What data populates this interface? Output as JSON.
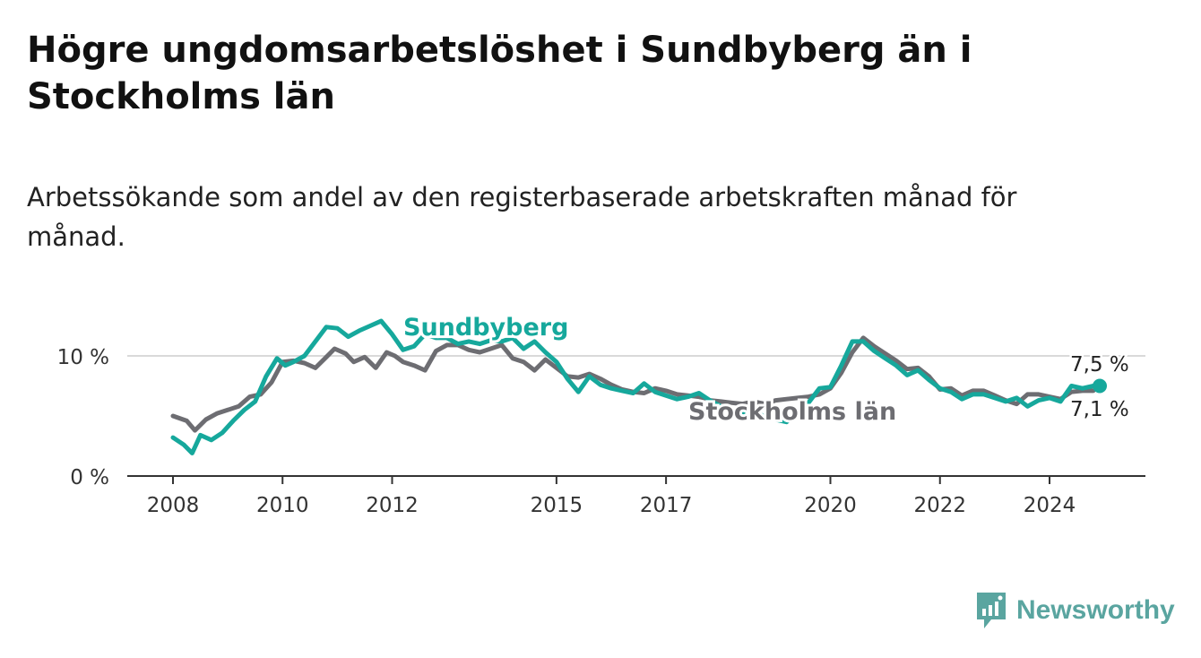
{
  "header": {
    "title": "Högre ungdomsarbetslöshet i Sundbyberg än i Stockholms län",
    "subtitle": "Arbetssökande som andel av den registerbaserade arbetskraften månad för månad."
  },
  "branding": {
    "name": "Newsworthy",
    "icon": "newsworthy-logo-icon"
  },
  "colors": {
    "sundbyberg": "#16a89c",
    "stockholm": "#6d6d72",
    "axis": "#333333",
    "grid": "#d9d9d9"
  },
  "chart_data": {
    "type": "line",
    "ylim": [
      0,
      14
    ],
    "y_ticks": [
      {
        "value": 0,
        "label": "0 %"
      },
      {
        "value": 10,
        "label": "10 %"
      }
    ],
    "x_ticks": [
      {
        "value": 2008,
        "label": "2008"
      },
      {
        "value": 2010,
        "label": "2010"
      },
      {
        "value": 2012,
        "label": "2012"
      },
      {
        "value": 2015,
        "label": "2015"
      },
      {
        "value": 2017,
        "label": "2017"
      },
      {
        "value": 2020,
        "label": "2020"
      },
      {
        "value": 2022,
        "label": "2022"
      },
      {
        "value": 2024,
        "label": "2024"
      }
    ],
    "grid": "horizontal",
    "series": [
      {
        "name": "Stockholms län",
        "key": "stockholm",
        "end_label": "7,1 %",
        "points": [
          [
            2008.0,
            5.0
          ],
          [
            2008.25,
            4.6
          ],
          [
            2008.4,
            3.8
          ],
          [
            2008.6,
            4.7
          ],
          [
            2008.8,
            5.2
          ],
          [
            2009.0,
            5.5
          ],
          [
            2009.2,
            5.8
          ],
          [
            2009.4,
            6.6
          ],
          [
            2009.6,
            6.8
          ],
          [
            2009.8,
            7.8
          ],
          [
            2010.0,
            9.5
          ],
          [
            2010.2,
            9.6
          ],
          [
            2010.4,
            9.4
          ],
          [
            2010.6,
            9.0
          ],
          [
            2010.8,
            9.9
          ],
          [
            2010.95,
            10.6
          ],
          [
            2011.15,
            10.2
          ],
          [
            2011.3,
            9.5
          ],
          [
            2011.5,
            9.9
          ],
          [
            2011.7,
            9.0
          ],
          [
            2011.9,
            10.3
          ],
          [
            2012.05,
            10.0
          ],
          [
            2012.2,
            9.5
          ],
          [
            2012.4,
            9.2
          ],
          [
            2012.6,
            8.8
          ],
          [
            2012.8,
            10.4
          ],
          [
            2013.0,
            10.9
          ],
          [
            2013.2,
            10.9
          ],
          [
            2013.4,
            10.5
          ],
          [
            2013.6,
            10.3
          ],
          [
            2013.8,
            10.6
          ],
          [
            2014.0,
            10.9
          ],
          [
            2014.2,
            9.8
          ],
          [
            2014.4,
            9.5
          ],
          [
            2014.6,
            8.8
          ],
          [
            2014.8,
            9.7
          ],
          [
            2015.0,
            9.0
          ],
          [
            2015.2,
            8.3
          ],
          [
            2015.4,
            8.2
          ],
          [
            2015.6,
            8.5
          ],
          [
            2015.8,
            8.1
          ],
          [
            2016.0,
            7.6
          ],
          [
            2016.2,
            7.2
          ],
          [
            2016.4,
            7.0
          ],
          [
            2016.6,
            6.9
          ],
          [
            2016.8,
            7.3
          ],
          [
            2017.0,
            7.1
          ],
          [
            2017.2,
            6.8
          ],
          [
            2017.4,
            6.7
          ],
          [
            2017.6,
            6.6
          ],
          [
            2017.8,
            6.3
          ],
          [
            2018.0,
            6.2
          ],
          [
            2018.2,
            6.1
          ],
          [
            2018.4,
            6.0
          ],
          [
            2018.6,
            6.2
          ],
          [
            2018.8,
            6.0
          ],
          [
            2019.0,
            6.3
          ],
          [
            2019.2,
            6.4
          ],
          [
            2019.4,
            6.5
          ],
          [
            2019.6,
            6.6
          ],
          [
            2019.8,
            6.8
          ],
          [
            2020.0,
            7.3
          ],
          [
            2020.2,
            8.6
          ],
          [
            2020.4,
            10.3
          ],
          [
            2020.6,
            11.5
          ],
          [
            2020.8,
            10.8
          ],
          [
            2021.0,
            10.2
          ],
          [
            2021.2,
            9.6
          ],
          [
            2021.4,
            8.9
          ],
          [
            2021.6,
            9.0
          ],
          [
            2021.8,
            8.3
          ],
          [
            2022.0,
            7.2
          ],
          [
            2022.2,
            7.3
          ],
          [
            2022.4,
            6.7
          ],
          [
            2022.6,
            7.1
          ],
          [
            2022.8,
            7.1
          ],
          [
            2023.0,
            6.7
          ],
          [
            2023.2,
            6.3
          ],
          [
            2023.4,
            6.0
          ],
          [
            2023.6,
            6.8
          ],
          [
            2023.8,
            6.8
          ],
          [
            2024.0,
            6.6
          ],
          [
            2024.2,
            6.4
          ],
          [
            2024.4,
            7.0
          ],
          [
            2024.6,
            7.1
          ],
          [
            2024.8,
            7.1
          ]
        ]
      },
      {
        "name": "Sundbyberg",
        "key": "sundbyberg",
        "end_label": "7,5 %",
        "points": [
          [
            2008.0,
            3.2
          ],
          [
            2008.2,
            2.6
          ],
          [
            2008.35,
            1.9
          ],
          [
            2008.5,
            3.4
          ],
          [
            2008.7,
            3.0
          ],
          [
            2008.9,
            3.6
          ],
          [
            2009.1,
            4.6
          ],
          [
            2009.3,
            5.5
          ],
          [
            2009.5,
            6.2
          ],
          [
            2009.7,
            8.3
          ],
          [
            2009.9,
            9.8
          ],
          [
            2010.05,
            9.2
          ],
          [
            2010.2,
            9.5
          ],
          [
            2010.4,
            10.0
          ],
          [
            2010.6,
            11.2
          ],
          [
            2010.8,
            12.4
          ],
          [
            2011.0,
            12.3
          ],
          [
            2011.2,
            11.6
          ],
          [
            2011.4,
            12.1
          ],
          [
            2011.6,
            12.5
          ],
          [
            2011.8,
            12.9
          ],
          [
            2012.0,
            11.8
          ],
          [
            2012.2,
            10.5
          ],
          [
            2012.4,
            10.8
          ],
          [
            2012.6,
            11.8
          ],
          [
            2012.8,
            11.5
          ],
          [
            2013.0,
            11.5
          ],
          [
            2013.2,
            11.0
          ],
          [
            2013.4,
            11.2
          ],
          [
            2013.6,
            11.0
          ],
          [
            2013.8,
            11.3
          ],
          [
            2014.0,
            11.2
          ],
          [
            2014.2,
            11.5
          ],
          [
            2014.4,
            10.6
          ],
          [
            2014.6,
            11.2
          ],
          [
            2014.8,
            10.3
          ],
          [
            2015.0,
            9.5
          ],
          [
            2015.2,
            8.1
          ],
          [
            2015.4,
            7.0
          ],
          [
            2015.6,
            8.3
          ],
          [
            2015.8,
            7.6
          ],
          [
            2016.0,
            7.3
          ],
          [
            2016.2,
            7.1
          ],
          [
            2016.4,
            6.9
          ],
          [
            2016.6,
            7.7
          ],
          [
            2016.8,
            7.0
          ],
          [
            2017.0,
            6.7
          ],
          [
            2017.2,
            6.4
          ],
          [
            2017.4,
            6.6
          ],
          [
            2017.6,
            6.9
          ],
          [
            2017.8,
            6.3
          ],
          [
            2018.0,
            5.8
          ],
          [
            2018.2,
            5.5
          ],
          [
            2018.4,
            5.2
          ],
          [
            2018.6,
            5.5
          ],
          [
            2018.8,
            4.9
          ],
          [
            2019.0,
            4.7
          ],
          [
            2019.2,
            4.5
          ],
          [
            2019.4,
            5.3
          ],
          [
            2019.6,
            6.1
          ],
          [
            2019.8,
            7.3
          ],
          [
            2020.0,
            7.4
          ],
          [
            2020.2,
            9.2
          ],
          [
            2020.4,
            11.2
          ],
          [
            2020.6,
            11.2
          ],
          [
            2020.8,
            10.4
          ],
          [
            2021.0,
            9.8
          ],
          [
            2021.2,
            9.2
          ],
          [
            2021.4,
            8.4
          ],
          [
            2021.6,
            8.8
          ],
          [
            2021.8,
            8.0
          ],
          [
            2022.0,
            7.3
          ],
          [
            2022.2,
            7.0
          ],
          [
            2022.4,
            6.4
          ],
          [
            2022.6,
            6.8
          ],
          [
            2022.8,
            6.8
          ],
          [
            2023.0,
            6.5
          ],
          [
            2023.2,
            6.2
          ],
          [
            2023.4,
            6.5
          ],
          [
            2023.6,
            5.8
          ],
          [
            2023.8,
            6.3
          ],
          [
            2024.0,
            6.5
          ],
          [
            2024.2,
            6.2
          ],
          [
            2024.4,
            7.5
          ],
          [
            2024.6,
            7.3
          ],
          [
            2024.8,
            7.5
          ]
        ]
      }
    ]
  }
}
